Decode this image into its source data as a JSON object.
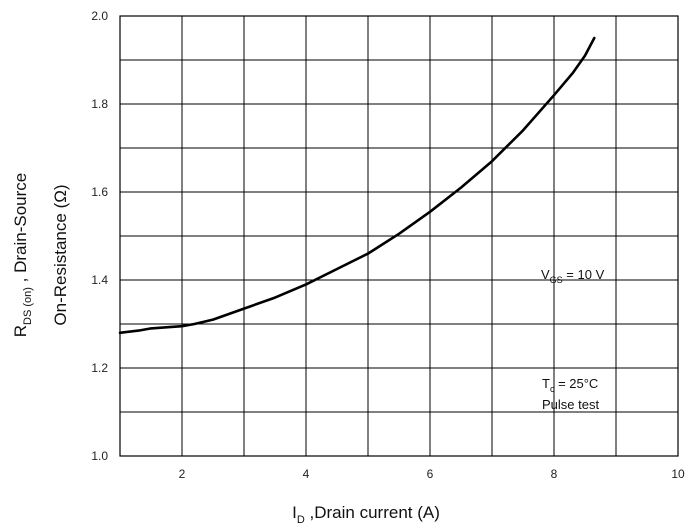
{
  "chart_data": {
    "type": "line",
    "xlim": [
      1,
      10
    ],
    "ylim": [
      1.0,
      2.0
    ],
    "x_ticks": [
      2,
      4,
      6,
      8,
      10
    ],
    "y_ticks": [
      1.0,
      1.2,
      1.4,
      1.6,
      1.8,
      2.0
    ],
    "x_tick_labels": [
      "2",
      "4",
      "6",
      "8",
      "10"
    ],
    "y_tick_labels": [
      "1.0",
      "1.2",
      "1.4",
      "1.6",
      "1.8",
      "2.0"
    ],
    "x_grid_step": 1,
    "y_grid_step": 0.1,
    "grid": true,
    "xlabel": {
      "main": "I",
      "sub": "D",
      "rest": " ,Drain current (A)"
    },
    "ylabel": {
      "line1_main": "R",
      "line1_sub": "DS (on)",
      "line1_rest": " , Drain-Source",
      "line2": "On-Resistance   (Ω)"
    },
    "annotations": {
      "vgs": {
        "main": "V",
        "sub": "GS",
        "rest": " = 10 V"
      },
      "tc": {
        "main": "T",
        "sub": "c",
        "rest": " = 25°C"
      },
      "pulse": "Pulse test"
    },
    "series": [
      {
        "x": [
          1.0,
          1.3,
          1.5,
          1.8,
          2.0,
          2.2,
          2.5,
          3.0,
          3.5,
          4.0,
          4.5,
          5.0,
          5.5,
          6.0,
          6.5,
          7.0,
          7.5,
          8.0,
          8.3,
          8.5,
          8.65
        ],
        "y": [
          1.28,
          1.285,
          1.29,
          1.293,
          1.295,
          1.3,
          1.31,
          1.335,
          1.36,
          1.39,
          1.425,
          1.46,
          1.505,
          1.555,
          1.61,
          1.67,
          1.74,
          1.82,
          1.87,
          1.91,
          1.95
        ]
      }
    ]
  }
}
